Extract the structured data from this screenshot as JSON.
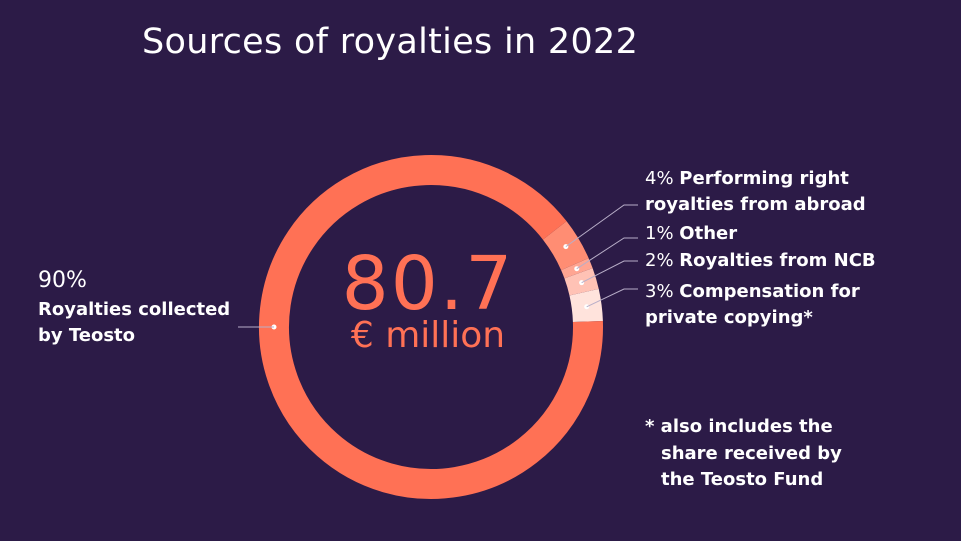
{
  "title": "Sources of royalties in 2022",
  "center": {
    "value": "80.7",
    "unit": "€ million"
  },
  "chart_data": {
    "type": "pie",
    "donut": true,
    "title": "Sources of royalties in 2022",
    "total_label": "80.7 € million",
    "slices": [
      {
        "name": "Royalties collected by Teosto",
        "pct_label": "90%",
        "value": 90,
        "color": "#ff7155"
      },
      {
        "name": "Performing right royalties from abroad",
        "pct_label": "4%",
        "value": 4,
        "color": "#ff8d73"
      },
      {
        "name": "Other",
        "pct_label": "1%",
        "value": 1,
        "color": "#ffa592"
      },
      {
        "name": "Royalties from NCB",
        "pct_label": "2%",
        "value": 2,
        "color": "#ffc2b5"
      },
      {
        "name": "Compensation for private copying*",
        "pct_label": "3%",
        "value": 3,
        "color": "#ffe3dc"
      }
    ]
  },
  "labels": {
    "teosto": {
      "pct": "90%",
      "line1": "Royalties collected",
      "line2": "by Teosto"
    },
    "abroad": {
      "pct": "4%",
      "line1": "Performing right",
      "line2": "royalties from abroad"
    },
    "other": {
      "pct": "1%",
      "name": "Other"
    },
    "ncb": {
      "pct": "2%",
      "name": "Royalties from NCB"
    },
    "copying": {
      "pct": "3%",
      "line1": "Compensation for",
      "line2": "private copying*"
    }
  },
  "footnote": {
    "line1": "* also includes the",
    "line2": "share received by",
    "line3": "the Teosto Fund"
  },
  "colors": {
    "background": "#2c1b47",
    "accent": "#ff7155",
    "leader": "#b8aec8"
  }
}
